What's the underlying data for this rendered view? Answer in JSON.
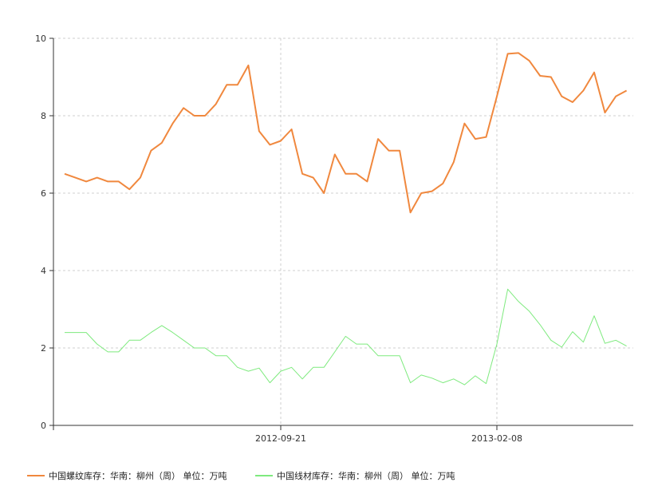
{
  "chart_data": {
    "type": "line",
    "title": "",
    "xlabel": "",
    "ylabel": "",
    "ylim": [
      0,
      10
    ],
    "yticks": [
      "0",
      "2",
      "4",
      "6",
      "8",
      "10"
    ],
    "xticks": [
      {
        "label": "2012-09-21",
        "index": 20
      },
      {
        "label": "2013-02-08",
        "index": 40
      }
    ],
    "grid": "dashed",
    "legend_position": "bottom",
    "series": [
      {
        "name": "中国螺纹库存：华南：柳州（周） 单位：万吨",
        "color": "#F0883E",
        "values": [
          6.5,
          6.4,
          6.3,
          6.4,
          6.3,
          6.3,
          6.1,
          6.4,
          7.1,
          7.3,
          7.8,
          8.2,
          8.0,
          8.0,
          8.3,
          8.8,
          8.8,
          9.3,
          7.6,
          7.25,
          7.35,
          7.65,
          6.5,
          6.4,
          6.0,
          7.0,
          6.5,
          6.5,
          6.3,
          7.4,
          7.1,
          7.1,
          5.5,
          6.0,
          6.05,
          6.25,
          6.8,
          7.8,
          7.4,
          7.45,
          8.5,
          9.6,
          9.62,
          9.42,
          9.03,
          9.0,
          8.5,
          8.35,
          8.65,
          9.12,
          8.08,
          8.5,
          8.65
        ]
      },
      {
        "name": "中国线材库存：华南：柳州（周） 单位：万吨",
        "color": "#7EEA7E",
        "values": [
          2.4,
          2.4,
          2.4,
          2.1,
          1.9,
          1.9,
          2.2,
          2.2,
          2.4,
          2.58,
          2.4,
          2.2,
          2.0,
          2.0,
          1.8,
          1.8,
          1.5,
          1.4,
          1.48,
          1.1,
          1.4,
          1.5,
          1.2,
          1.5,
          1.5,
          1.9,
          2.3,
          2.1,
          2.1,
          1.8,
          1.8,
          1.8,
          1.1,
          1.3,
          1.22,
          1.1,
          1.2,
          1.05,
          1.28,
          1.08,
          2.1,
          3.52,
          3.2,
          2.95,
          2.6,
          2.2,
          2.02,
          2.42,
          2.15,
          2.83,
          2.12,
          2.2,
          2.05
        ]
      }
    ]
  }
}
